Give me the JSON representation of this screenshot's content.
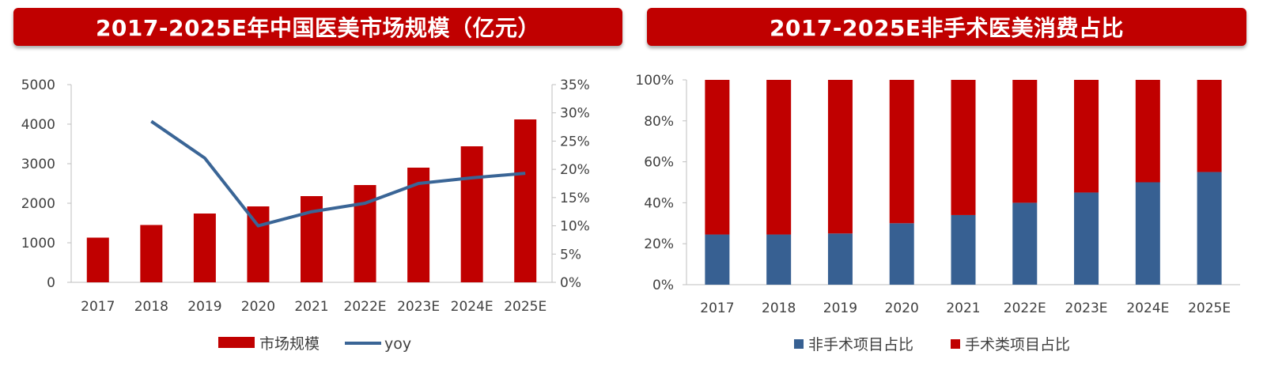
{
  "colors": {
    "red": "#c00000",
    "blue": "#376092",
    "line_blue": "#3a6596",
    "axis": "#bfbfbf",
    "text": "#404040"
  },
  "chart_data": [
    {
      "type": "bar",
      "title": "2017-2025E年中国医美市场规模（亿元）",
      "categories": [
        "2017",
        "2018",
        "2019",
        "2020",
        "2021",
        "2022E",
        "2023E",
        "2024E",
        "2025E"
      ],
      "series": [
        {
          "name": "市场规模",
          "type": "bar",
          "axis": "left",
          "values": [
            1130,
            1450,
            1740,
            1920,
            2180,
            2460,
            2900,
            3440,
            4120
          ]
        },
        {
          "name": "yoy",
          "type": "line",
          "axis": "right",
          "values": [
            null,
            0.285,
            0.22,
            0.1,
            0.125,
            0.14,
            0.175,
            0.185,
            0.193
          ]
        }
      ],
      "ylim": [
        0,
        5000
      ],
      "yticks": [
        "0",
        "1000",
        "2000",
        "3000",
        "4000",
        "5000"
      ],
      "y2lim": [
        0,
        0.35
      ],
      "y2ticks": [
        "0%",
        "5%",
        "10%",
        "15%",
        "20%",
        "25%",
        "30%",
        "35%"
      ],
      "legend": "bottom"
    },
    {
      "type": "bar",
      "stacked": true,
      "title": "2017-2025E非手术医美消费占比",
      "categories": [
        "2017",
        "2018",
        "2019",
        "2020",
        "2021",
        "2022E",
        "2023E",
        "2024E",
        "2025E"
      ],
      "series": [
        {
          "name": "非手术项目占比",
          "values": [
            0.245,
            0.245,
            0.25,
            0.3,
            0.34,
            0.4,
            0.45,
            0.5,
            0.55
          ]
        },
        {
          "name": "手术类项目占比",
          "values": [
            0.755,
            0.755,
            0.75,
            0.7,
            0.66,
            0.6,
            0.55,
            0.5,
            0.45
          ]
        }
      ],
      "ylim": [
        0,
        1
      ],
      "yticks": [
        "0%",
        "20%",
        "40%",
        "60%",
        "80%",
        "100%"
      ],
      "legend": "bottom"
    }
  ]
}
